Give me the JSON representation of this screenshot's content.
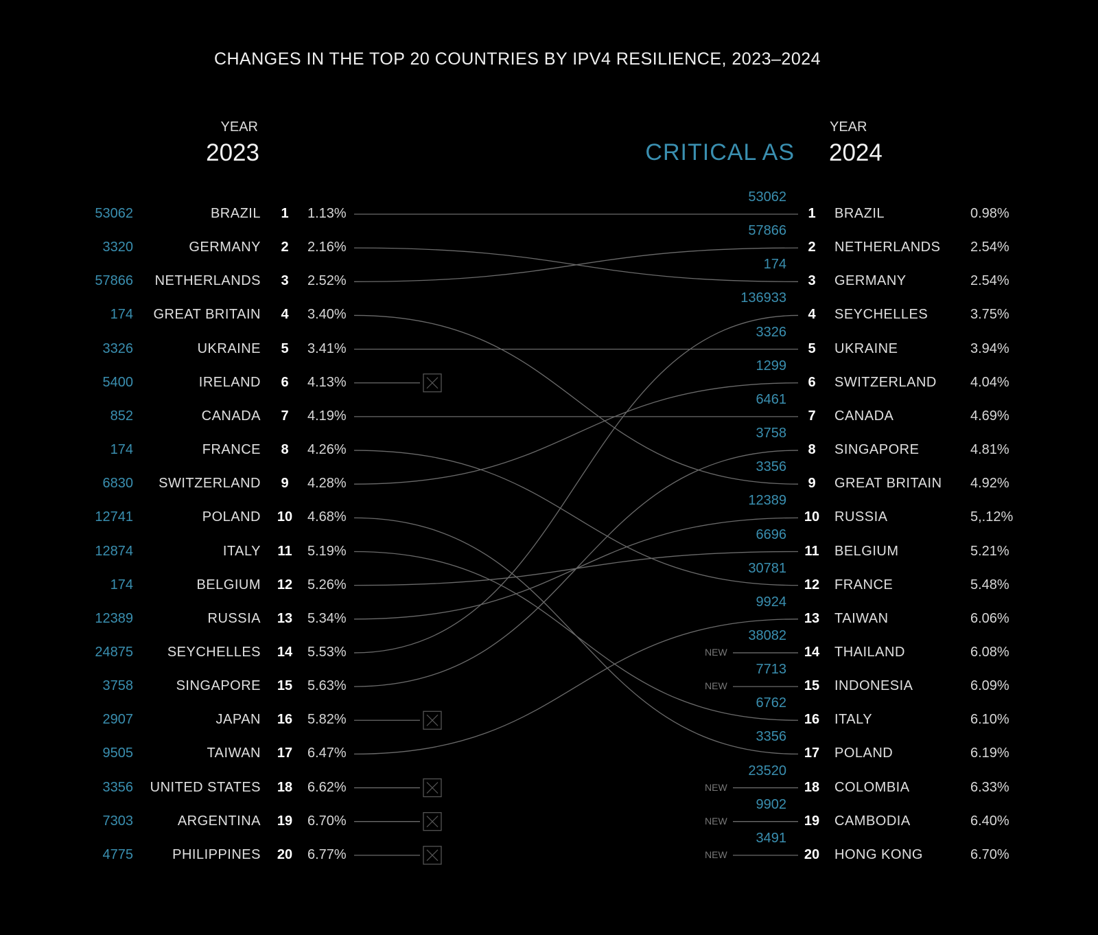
{
  "chart_data": {
    "type": "slope",
    "title": "CHANGES IN THE TOP 20 COUNTRIES BY IPV4 RESILIENCE, 2023–2024",
    "left_header": {
      "label": "YEAR",
      "year": "2023"
    },
    "right_header": {
      "critical_label": "CRITICAL AS",
      "label": "YEAR",
      "year": "2024"
    },
    "new_label": "NEW",
    "line_color": "#6b6b6b",
    "accent_color": "#3a8fb0",
    "y2023": [
      {
        "rank": "1",
        "country": "BRAZIL",
        "as": "53062",
        "pct": "1.13%",
        "to": 1
      },
      {
        "rank": "2",
        "country": "GERMANY",
        "as": "3320",
        "pct": "2.16%",
        "to": 3
      },
      {
        "rank": "3",
        "country": "NETHERLANDS",
        "as": "57866",
        "pct": "2.52%",
        "to": 2
      },
      {
        "rank": "4",
        "country": "GREAT BRITAIN",
        "as": "174",
        "pct": "3.40%",
        "to": 9
      },
      {
        "rank": "5",
        "country": "UKRAINE",
        "as": "3326",
        "pct": "3.41%",
        "to": 5
      },
      {
        "rank": "6",
        "country": "IRELAND",
        "as": "5400",
        "pct": "4.13%",
        "to": null
      },
      {
        "rank": "7",
        "country": "CANADA",
        "as": "852",
        "pct": "4.19%",
        "to": 7
      },
      {
        "rank": "8",
        "country": "FRANCE",
        "as": "174",
        "pct": "4.26%",
        "to": 12
      },
      {
        "rank": "9",
        "country": "SWITZERLAND",
        "as": "6830",
        "pct": "4.28%",
        "to": 6
      },
      {
        "rank": "10",
        "country": "POLAND",
        "as": "12741",
        "pct": "4.68%",
        "to": 17
      },
      {
        "rank": "11",
        "country": "ITALY",
        "as": "12874",
        "pct": "5.19%",
        "to": 16
      },
      {
        "rank": "12",
        "country": "BELGIUM",
        "as": "174",
        "pct": "5.26%",
        "to": 11
      },
      {
        "rank": "13",
        "country": "RUSSIA",
        "as": "12389",
        "pct": "5.34%",
        "to": 10
      },
      {
        "rank": "14",
        "country": "SEYCHELLES",
        "as": "24875",
        "pct": "5.53%",
        "to": 4
      },
      {
        "rank": "15",
        "country": "SINGAPORE",
        "as": "3758",
        "pct": "5.63%",
        "to": 8
      },
      {
        "rank": "16",
        "country": "JAPAN",
        "as": "2907",
        "pct": "5.82%",
        "to": null
      },
      {
        "rank": "17",
        "country": "TAIWAN",
        "as": "9505",
        "pct": "6.47%",
        "to": 13
      },
      {
        "rank": "18",
        "country": "UNITED STATES",
        "as": "3356",
        "pct": "6.62%",
        "to": null
      },
      {
        "rank": "19",
        "country": "ARGENTINA",
        "as": "7303",
        "pct": "6.70%",
        "to": null
      },
      {
        "rank": "20",
        "country": "PHILIPPINES",
        "as": "4775",
        "pct": "6.77%",
        "to": null
      }
    ],
    "y2024": [
      {
        "rank": "1",
        "country": "BRAZIL",
        "as": "53062",
        "pct": "0.98%",
        "new": false
      },
      {
        "rank": "2",
        "country": "NETHERLANDS",
        "as": "57866",
        "pct": "2.54%",
        "new": false
      },
      {
        "rank": "3",
        "country": "GERMANY",
        "as": "174",
        "pct": "2.54%",
        "new": false
      },
      {
        "rank": "4",
        "country": "SEYCHELLES",
        "as": "136933",
        "pct": "3.75%",
        "new": false
      },
      {
        "rank": "5",
        "country": "UKRAINE",
        "as": "3326",
        "pct": "3.94%",
        "new": false
      },
      {
        "rank": "6",
        "country": "SWITZERLAND",
        "as": "1299",
        "pct": "4.04%",
        "new": false
      },
      {
        "rank": "7",
        "country": "CANADA",
        "as": "6461",
        "pct": "4.69%",
        "new": false
      },
      {
        "rank": "8",
        "country": "SINGAPORE",
        "as": "3758",
        "pct": "4.81%",
        "new": false
      },
      {
        "rank": "9",
        "country": "GREAT BRITAIN",
        "as": "3356",
        "pct": "4.92%",
        "new": false
      },
      {
        "rank": "10",
        "country": "RUSSIA",
        "as": "12389",
        "pct": "5,.12%",
        "new": false
      },
      {
        "rank": "11",
        "country": "BELGIUM",
        "as": "6696",
        "pct": "5.21%",
        "new": false
      },
      {
        "rank": "12",
        "country": "FRANCE",
        "as": "30781",
        "pct": "5.48%",
        "new": false
      },
      {
        "rank": "13",
        "country": "TAIWAN",
        "as": "9924",
        "pct": "6.06%",
        "new": false
      },
      {
        "rank": "14",
        "country": "THAILAND",
        "as": "38082",
        "pct": "6.08%",
        "new": true
      },
      {
        "rank": "15",
        "country": "INDONESIA",
        "as": "7713",
        "pct": "6.09%",
        "new": true
      },
      {
        "rank": "16",
        "country": "ITALY",
        "as": "6762",
        "pct": "6.10%",
        "new": false
      },
      {
        "rank": "17",
        "country": "POLAND",
        "as": "3356",
        "pct": "6.19%",
        "new": false
      },
      {
        "rank": "18",
        "country": "COLOMBIA",
        "as": "23520",
        "pct": "6.33%",
        "new": true
      },
      {
        "rank": "19",
        "country": "CAMBODIA",
        "as": "9902",
        "pct": "6.40%",
        "new": true
      },
      {
        "rank": "20",
        "country": "HONG KONG",
        "as": "3491",
        "pct": "6.70%",
        "new": true
      }
    ]
  }
}
